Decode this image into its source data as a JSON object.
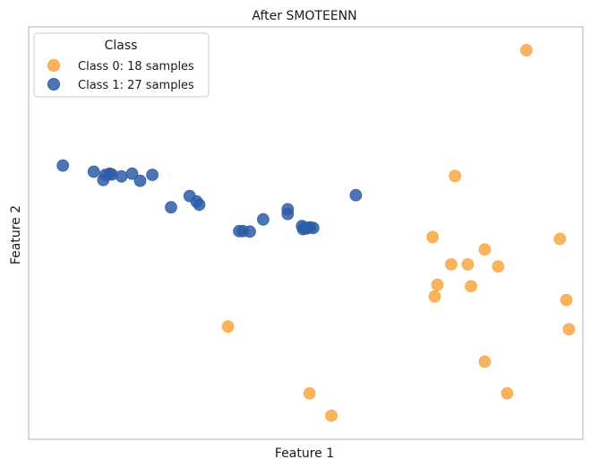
{
  "chart_data": {
    "type": "scatter",
    "title": "After SMOTEENN",
    "xlabel": "Feature 1",
    "ylabel": "Feature 2",
    "xlim": [
      0,
      100
    ],
    "ylim": [
      0,
      100
    ],
    "grid": false,
    "legend": {
      "title": "Class",
      "position": "top-left"
    },
    "series": [
      {
        "name": "Class 0: 18 samples",
        "color": "#f8a741",
        "points": [
          {
            "x": 91.4,
            "y": 96.8
          },
          {
            "x": 78.0,
            "y": 64.6
          },
          {
            "x": 73.8,
            "y": 49.0
          },
          {
            "x": 77.3,
            "y": 42.0
          },
          {
            "x": 80.4,
            "y": 42.0
          },
          {
            "x": 83.6,
            "y": 45.8
          },
          {
            "x": 86.1,
            "y": 41.5
          },
          {
            "x": 97.7,
            "y": 48.5
          },
          {
            "x": 74.7,
            "y": 36.8
          },
          {
            "x": 74.2,
            "y": 33.8
          },
          {
            "x": 81.0,
            "y": 36.4
          },
          {
            "x": 98.9,
            "y": 32.9
          },
          {
            "x": 99.4,
            "y": 25.4
          },
          {
            "x": 35.4,
            "y": 26.1
          },
          {
            "x": 83.6,
            "y": 17.1
          },
          {
            "x": 87.8,
            "y": 9.0
          },
          {
            "x": 50.7,
            "y": 9.0
          },
          {
            "x": 54.8,
            "y": 3.3
          }
        ]
      },
      {
        "name": "Class 1: 27 samples",
        "color": "#2e5da6",
        "points": [
          {
            "x": 4.4,
            "y": 67.3
          },
          {
            "x": 10.2,
            "y": 65.7
          },
          {
            "x": 12.4,
            "y": 64.9
          },
          {
            "x": 13.2,
            "y": 65.2
          },
          {
            "x": 13.6,
            "y": 65.0
          },
          {
            "x": 12.0,
            "y": 63.6
          },
          {
            "x": 15.4,
            "y": 64.5
          },
          {
            "x": 17.4,
            "y": 65.2
          },
          {
            "x": 18.9,
            "y": 63.4
          },
          {
            "x": 21.2,
            "y": 64.9
          },
          {
            "x": 24.7,
            "y": 56.6
          },
          {
            "x": 28.2,
            "y": 59.5
          },
          {
            "x": 29.5,
            "y": 58.1
          },
          {
            "x": 30.0,
            "y": 57.3
          },
          {
            "x": 37.5,
            "y": 50.5
          },
          {
            "x": 38.2,
            "y": 50.5
          },
          {
            "x": 39.5,
            "y": 50.4
          },
          {
            "x": 42.0,
            "y": 53.5
          },
          {
            "x": 46.6,
            "y": 56.1
          },
          {
            "x": 46.6,
            "y": 54.9
          },
          {
            "x": 49.3,
            "y": 51.8
          },
          {
            "x": 49.5,
            "y": 51.0
          },
          {
            "x": 50.2,
            "y": 51.2
          },
          {
            "x": 50.8,
            "y": 51.5
          },
          {
            "x": 51.4,
            "y": 51.3
          },
          {
            "x": 59.4,
            "y": 59.7
          },
          {
            "x": 49.8,
            "y": 51.4
          }
        ]
      }
    ]
  }
}
